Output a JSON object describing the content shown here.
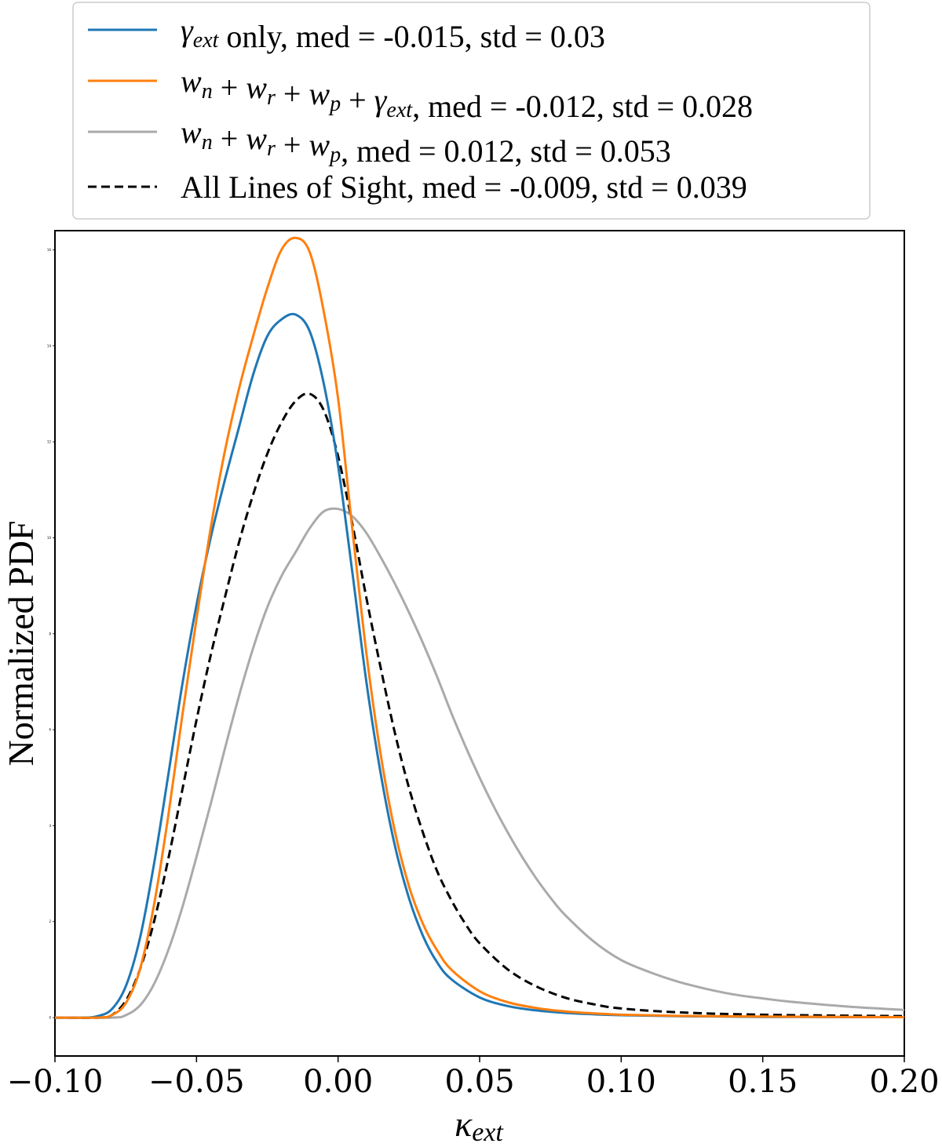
{
  "chart_data": {
    "type": "line",
    "xlabel": "κext",
    "ylabel": "Normalized PDF",
    "xlim": [
      -0.1,
      0.2
    ],
    "ylim": [
      -0.8,
      16.4
    ],
    "x_ticks": [
      "−0.10",
      "−0.05",
      "0.00",
      "0.05",
      "0.10",
      "0.15",
      "0.20"
    ],
    "x_tick_values": [
      -0.1,
      -0.05,
      0.0,
      0.05,
      0.1,
      0.15,
      0.2
    ],
    "y_ticks": [
      "0",
      "2",
      "4",
      "6",
      "8",
      "10",
      "12",
      "14",
      "16"
    ],
    "y_tick_values": [
      0,
      2,
      4,
      6,
      8,
      10,
      12,
      14,
      16
    ],
    "legend_position": "top (above plot)",
    "grid": false,
    "series": [
      {
        "name": "γext only, med = -0.015, std = 0.03",
        "color": "#1f77b4",
        "dash": "solid",
        "x": [
          -0.1,
          -0.09,
          -0.085,
          -0.08,
          -0.075,
          -0.07,
          -0.065,
          -0.06,
          -0.055,
          -0.05,
          -0.045,
          -0.04,
          -0.035,
          -0.03,
          -0.025,
          -0.02,
          -0.015,
          -0.01,
          -0.005,
          0.0,
          0.005,
          0.01,
          0.015,
          0.02,
          0.025,
          0.03,
          0.035,
          0.04,
          0.05,
          0.06,
          0.07,
          0.08,
          0.09,
          0.1,
          0.12,
          0.15,
          0.2
        ],
        "y": [
          0.0,
          0.0,
          0.03,
          0.17,
          0.65,
          1.65,
          3.2,
          5.05,
          6.95,
          8.6,
          10.0,
          11.2,
          12.3,
          13.4,
          14.2,
          14.55,
          14.65,
          14.3,
          13.2,
          11.5,
          9.3,
          7.0,
          5.1,
          3.6,
          2.5,
          1.7,
          1.15,
          0.8,
          0.42,
          0.24,
          0.15,
          0.1,
          0.07,
          0.05,
          0.03,
          0.015,
          0.01
        ]
      },
      {
        "name": "wn + wr + wp + γext, med = -0.012, std = 0.028",
        "color": "#ff7f0e",
        "dash": "solid",
        "x": [
          -0.1,
          -0.085,
          -0.08,
          -0.075,
          -0.07,
          -0.065,
          -0.06,
          -0.055,
          -0.05,
          -0.045,
          -0.04,
          -0.035,
          -0.03,
          -0.025,
          -0.02,
          -0.015,
          -0.01,
          -0.005,
          0.0,
          0.005,
          0.01,
          0.015,
          0.02,
          0.025,
          0.03,
          0.035,
          0.04,
          0.05,
          0.06,
          0.07,
          0.08,
          0.09,
          0.1,
          0.12,
          0.15,
          0.2
        ],
        "y": [
          0.0,
          0.0,
          0.05,
          0.3,
          1.0,
          2.35,
          4.2,
          6.3,
          8.3,
          10.2,
          11.8,
          13.1,
          14.2,
          15.2,
          16.0,
          16.25,
          15.95,
          14.7,
          12.9,
          10.2,
          7.6,
          5.5,
          3.9,
          2.75,
          1.95,
          1.4,
          1.0,
          0.55,
          0.32,
          0.2,
          0.13,
          0.09,
          0.06,
          0.035,
          0.02,
          0.01
        ]
      },
      {
        "name": "wn + wr + wp, med = 0.012, std = 0.053",
        "color": "#aaaaaa",
        "dash": "solid",
        "x": [
          -0.1,
          -0.08,
          -0.075,
          -0.07,
          -0.065,
          -0.06,
          -0.055,
          -0.05,
          -0.045,
          -0.04,
          -0.035,
          -0.03,
          -0.025,
          -0.02,
          -0.015,
          -0.01,
          -0.005,
          0.0,
          0.005,
          0.01,
          0.015,
          0.02,
          0.025,
          0.03,
          0.035,
          0.04,
          0.045,
          0.05,
          0.055,
          0.06,
          0.065,
          0.07,
          0.075,
          0.08,
          0.09,
          0.1,
          0.11,
          0.12,
          0.13,
          0.14,
          0.15,
          0.16,
          0.18,
          0.2
        ],
        "y": [
          0.0,
          0.0,
          0.05,
          0.25,
          0.7,
          1.4,
          2.3,
          3.35,
          4.45,
          5.6,
          6.7,
          7.7,
          8.55,
          9.2,
          9.7,
          10.2,
          10.55,
          10.6,
          10.45,
          10.1,
          9.6,
          9.05,
          8.45,
          7.8,
          7.1,
          6.35,
          5.65,
          5.0,
          4.4,
          3.85,
          3.35,
          2.9,
          2.5,
          2.15,
          1.6,
          1.2,
          0.95,
          0.75,
          0.6,
          0.48,
          0.4,
          0.33,
          0.23,
          0.16
        ]
      },
      {
        "name": "All Lines of Sight, med = -0.009, std = 0.039",
        "color": "#000000",
        "dash": "dashed",
        "x": [
          -0.1,
          -0.085,
          -0.08,
          -0.075,
          -0.07,
          -0.065,
          -0.06,
          -0.055,
          -0.05,
          -0.045,
          -0.04,
          -0.035,
          -0.03,
          -0.025,
          -0.02,
          -0.015,
          -0.01,
          -0.005,
          0.0,
          0.005,
          0.01,
          0.015,
          0.02,
          0.025,
          0.03,
          0.035,
          0.04,
          0.045,
          0.05,
          0.06,
          0.07,
          0.08,
          0.09,
          0.1,
          0.12,
          0.15,
          0.2
        ],
        "y": [
          0.0,
          0.0,
          0.05,
          0.35,
          1.0,
          2.0,
          3.3,
          4.75,
          6.2,
          7.55,
          8.75,
          9.9,
          10.9,
          11.75,
          12.4,
          12.85,
          13.0,
          12.65,
          11.7,
          10.3,
          8.75,
          7.3,
          5.95,
          4.8,
          3.85,
          3.05,
          2.45,
          1.95,
          1.55,
          1.0,
          0.65,
          0.42,
          0.28,
          0.19,
          0.11,
          0.06,
          0.03
        ]
      }
    ]
  }
}
